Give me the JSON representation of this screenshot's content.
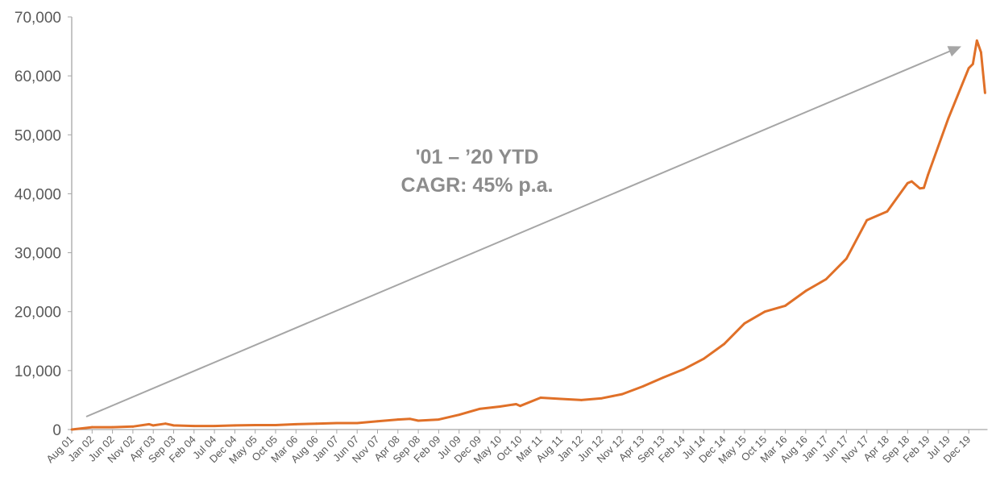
{
  "chart_data": {
    "type": "line",
    "title": "",
    "xlabel": "",
    "ylabel": "",
    "ylim": [
      0,
      70000
    ],
    "y_ticks": [
      0,
      10000,
      20000,
      30000,
      40000,
      50000,
      60000,
      70000
    ],
    "y_tick_labels": [
      "0",
      "10,000",
      "20,000",
      "30,000",
      "40,000",
      "50,000",
      "60,000",
      "70,000"
    ],
    "x_tick_labels": [
      "Aug 01",
      "Jan 02",
      "Jun 02",
      "Nov 02",
      "Apr 03",
      "Sep 03",
      "Feb 04",
      "Jul 04",
      "Dec 04",
      "May 05",
      "Oct 05",
      "Mar 06",
      "Aug 06",
      "Jan 07",
      "Jun 07",
      "Nov 07",
      "Apr 08",
      "Sep 08",
      "Feb 09",
      "Jul 09",
      "Dec 09",
      "May 10",
      "Oct 10",
      "Mar 11",
      "Aug 11",
      "Jan 12",
      "Jun 12",
      "Nov 12",
      "Apr 13",
      "Sep 13",
      "Feb 14",
      "Jul 14",
      "Dec 14",
      "May 15",
      "Oct 15",
      "Mar 16",
      "Aug 16",
      "Jan 17",
      "Jun 17",
      "Nov 17",
      "Apr 18",
      "Sep 18",
      "Feb 19",
      "Jul 19",
      "Dec 19"
    ],
    "x_range": [
      "2001-08",
      "2020-04"
    ],
    "grid": false,
    "legend": "none",
    "series": [
      {
        "color": "#e07028",
        "points": [
          {
            "date": "2001-08",
            "value": 0
          },
          {
            "date": "2002-01",
            "value": 400
          },
          {
            "date": "2002-06",
            "value": 400
          },
          {
            "date": "2002-11",
            "value": 500
          },
          {
            "date": "2003-03",
            "value": 900
          },
          {
            "date": "2003-04",
            "value": 700
          },
          {
            "date": "2003-07",
            "value": 1000
          },
          {
            "date": "2003-09",
            "value": 700
          },
          {
            "date": "2004-02",
            "value": 600
          },
          {
            "date": "2004-07",
            "value": 600
          },
          {
            "date": "2004-12",
            "value": 700
          },
          {
            "date": "2005-05",
            "value": 750
          },
          {
            "date": "2005-10",
            "value": 750
          },
          {
            "date": "2006-03",
            "value": 900
          },
          {
            "date": "2006-08",
            "value": 1000
          },
          {
            "date": "2007-01",
            "value": 1100
          },
          {
            "date": "2007-06",
            "value": 1100
          },
          {
            "date": "2007-11",
            "value": 1400
          },
          {
            "date": "2008-04",
            "value": 1700
          },
          {
            "date": "2008-07",
            "value": 1800
          },
          {
            "date": "2008-09",
            "value": 1500
          },
          {
            "date": "2009-02",
            "value": 1700
          },
          {
            "date": "2009-07",
            "value": 2500
          },
          {
            "date": "2009-12",
            "value": 3500
          },
          {
            "date": "2010-05",
            "value": 3900
          },
          {
            "date": "2010-09",
            "value": 4300
          },
          {
            "date": "2010-10",
            "value": 4000
          },
          {
            "date": "2011-03",
            "value": 5400
          },
          {
            "date": "2011-08",
            "value": 5200
          },
          {
            "date": "2012-01",
            "value": 5000
          },
          {
            "date": "2012-06",
            "value": 5300
          },
          {
            "date": "2012-11",
            "value": 6000
          },
          {
            "date": "2013-04",
            "value": 7300
          },
          {
            "date": "2013-09",
            "value": 8800
          },
          {
            "date": "2014-02",
            "value": 10200
          },
          {
            "date": "2014-07",
            "value": 12000
          },
          {
            "date": "2014-12",
            "value": 14500
          },
          {
            "date": "2015-05",
            "value": 18000
          },
          {
            "date": "2015-10",
            "value": 20000
          },
          {
            "date": "2016-03",
            "value": 21000
          },
          {
            "date": "2016-08",
            "value": 23500
          },
          {
            "date": "2017-01",
            "value": 25500
          },
          {
            "date": "2017-06",
            "value": 29000
          },
          {
            "date": "2017-11",
            "value": 35500
          },
          {
            "date": "2018-04",
            "value": 37000
          },
          {
            "date": "2018-09",
            "value": 41800
          },
          {
            "date": "2018-10",
            "value": 42100
          },
          {
            "date": "2018-12",
            "value": 40900
          },
          {
            "date": "2019-01",
            "value": 41000
          },
          {
            "date": "2019-02",
            "value": 43200
          },
          {
            "date": "2019-07",
            "value": 52800
          },
          {
            "date": "2019-12",
            "value": 61300
          },
          {
            "date": "2020-01",
            "value": 62000
          },
          {
            "date": "2020-02",
            "value": 66000
          },
          {
            "date": "2020-03",
            "value": 64000
          },
          {
            "date": "2020-04",
            "value": 57100
          }
        ]
      }
    ],
    "annotations": {
      "line1": "'01 – ’20 YTD",
      "line2": "CAGR: 45% p.a.",
      "arrow_color": "#a6a6a6"
    }
  }
}
